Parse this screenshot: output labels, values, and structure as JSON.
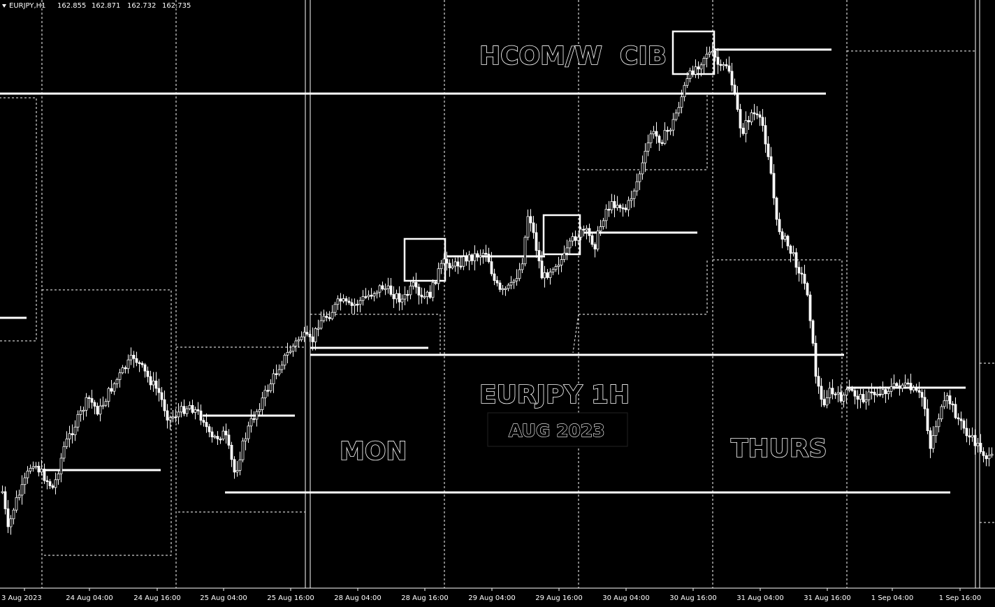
{
  "window": {
    "title": "EURJPY,H1",
    "ohlc": [
      "162.855",
      "162.871",
      "162.732",
      "162.735"
    ]
  },
  "annotations": {
    "title_main": "EURJPY 1H",
    "subtitle": "AUG 2023",
    "label_top": "HCOM/W  CIB",
    "label_mon": "MON",
    "label_thurs": "THURS"
  },
  "colors": {
    "background": "#000000",
    "foreground": "#ffffff"
  },
  "chart_data": {
    "type": "candlestick",
    "symbol": "EURJPY",
    "timeframe": "H1",
    "x_ticks": [
      "3 Aug 2023",
      "24 Aug 04:00",
      "24 Aug 16:00",
      "25 Aug 04:00",
      "25 Aug 16:00",
      "28 Aug 04:00",
      "28 Aug 16:00",
      "29 Aug 04:00",
      "29 Aug 16:00",
      "30 Aug 04:00",
      "30 Aug 16:00",
      "31 Aug 04:00",
      "31 Aug 16:00",
      "1 Sep 04:00",
      "1 Sep 16:00"
    ],
    "grid": false,
    "price_path": [
      [
        0,
        690
      ],
      [
        10,
        760
      ],
      [
        20,
        720
      ],
      [
        30,
        700
      ],
      [
        45,
        660
      ],
      [
        60,
        680
      ],
      [
        75,
        700
      ],
      [
        90,
        640
      ],
      [
        110,
        600
      ],
      [
        125,
        570
      ],
      [
        140,
        590
      ],
      [
        155,
        560
      ],
      [
        175,
        530
      ],
      [
        190,
        510
      ],
      [
        210,
        540
      ],
      [
        225,
        560
      ],
      [
        240,
        600
      ],
      [
        255,
        590
      ],
      [
        270,
        580
      ],
      [
        290,
        600
      ],
      [
        300,
        630
      ],
      [
        320,
        620
      ],
      [
        335,
        680
      ],
      [
        345,
        640
      ],
      [
        355,
        610
      ],
      [
        370,
        580
      ],
      [
        385,
        550
      ],
      [
        400,
        520
      ],
      [
        415,
        500
      ],
      [
        430,
        480
      ],
      [
        445,
        490
      ],
      [
        455,
        460
      ],
      [
        470,
        450
      ],
      [
        485,
        430
      ],
      [
        500,
        440
      ],
      [
        515,
        430
      ],
      [
        530,
        420
      ],
      [
        545,
        410
      ],
      [
        560,
        420
      ],
      [
        575,
        430
      ],
      [
        590,
        410
      ],
      [
        600,
        430
      ],
      [
        615,
        420
      ],
      [
        625,
        390
      ],
      [
        635,
        375
      ],
      [
        650,
        380
      ],
      [
        665,
        370
      ],
      [
        680,
        365
      ],
      [
        695,
        360
      ],
      [
        705,
        400
      ],
      [
        715,
        420
      ],
      [
        730,
        410
      ],
      [
        745,
        380
      ],
      [
        755,
        300
      ],
      [
        765,
        350
      ],
      [
        775,
        400
      ],
      [
        790,
        380
      ],
      [
        805,
        370
      ],
      [
        820,
        340
      ],
      [
        835,
        330
      ],
      [
        850,
        350
      ],
      [
        865,
        300
      ],
      [
        880,
        290
      ],
      [
        895,
        300
      ],
      [
        910,
        260
      ],
      [
        920,
        230
      ],
      [
        930,
        190
      ],
      [
        945,
        200
      ],
      [
        960,
        180
      ],
      [
        970,
        150
      ],
      [
        980,
        120
      ],
      [
        990,
        100
      ],
      [
        1000,
        90
      ],
      [
        1010,
        75
      ],
      [
        1020,
        80
      ],
      [
        1030,
        100
      ],
      [
        1040,
        90
      ],
      [
        1050,
        140
      ],
      [
        1060,
        190
      ],
      [
        1075,
        160
      ],
      [
        1090,
        180
      ],
      [
        1100,
        230
      ],
      [
        1110,
        320
      ],
      [
        1125,
        350
      ],
      [
        1140,
        380
      ],
      [
        1155,
        420
      ],
      [
        1165,
        530
      ],
      [
        1175,
        580
      ],
      [
        1185,
        560
      ],
      [
        1200,
        570
      ],
      [
        1215,
        560
      ],
      [
        1230,
        570
      ],
      [
        1245,
        565
      ],
      [
        1260,
        560
      ],
      [
        1275,
        555
      ],
      [
        1290,
        550
      ],
      [
        1305,
        560
      ],
      [
        1320,
        570
      ],
      [
        1330,
        640
      ],
      [
        1340,
        600
      ],
      [
        1355,
        570
      ],
      [
        1370,
        600
      ],
      [
        1385,
        625
      ],
      [
        1400,
        640
      ],
      [
        1415,
        660
      ],
      [
        1424,
        650
      ]
    ]
  }
}
